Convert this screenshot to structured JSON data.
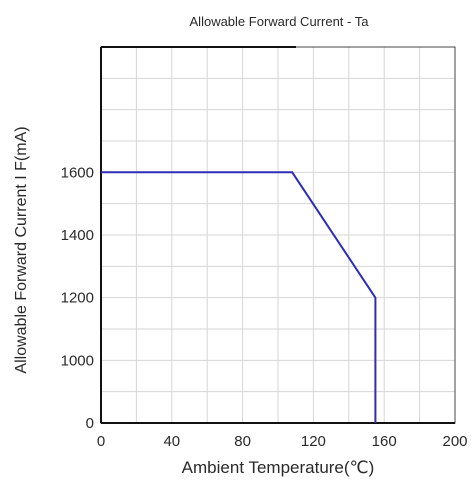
{
  "chart_data": {
    "type": "line",
    "title": "Allowable Forward Current - Ta",
    "xlabel": "Ambient Temperature(℃)",
    "ylabel": "Allowable Forward Current I F(mA)",
    "x_ticks": [
      "0",
      "40",
      "80",
      "120",
      "160",
      "200"
    ],
    "x_tick_values": [
      0,
      40,
      80,
      120,
      160,
      200
    ],
    "y_ticks": [
      "0",
      "1000",
      "1200",
      "1400",
      "1600"
    ],
    "xlim": [
      0,
      200
    ],
    "y_axis_note": "axis is broken at the bottom: the lowest tick reads 0, the remaining ticks are linear from 1000 to 1600",
    "ylim_visible": [
      800,
      2000
    ],
    "grid": true,
    "series": [
      {
        "x": [
          0,
          108,
          155,
          155
        ],
        "y": [
          1600,
          1600,
          1200,
          800
        ],
        "color": "#2d2db8"
      }
    ]
  }
}
